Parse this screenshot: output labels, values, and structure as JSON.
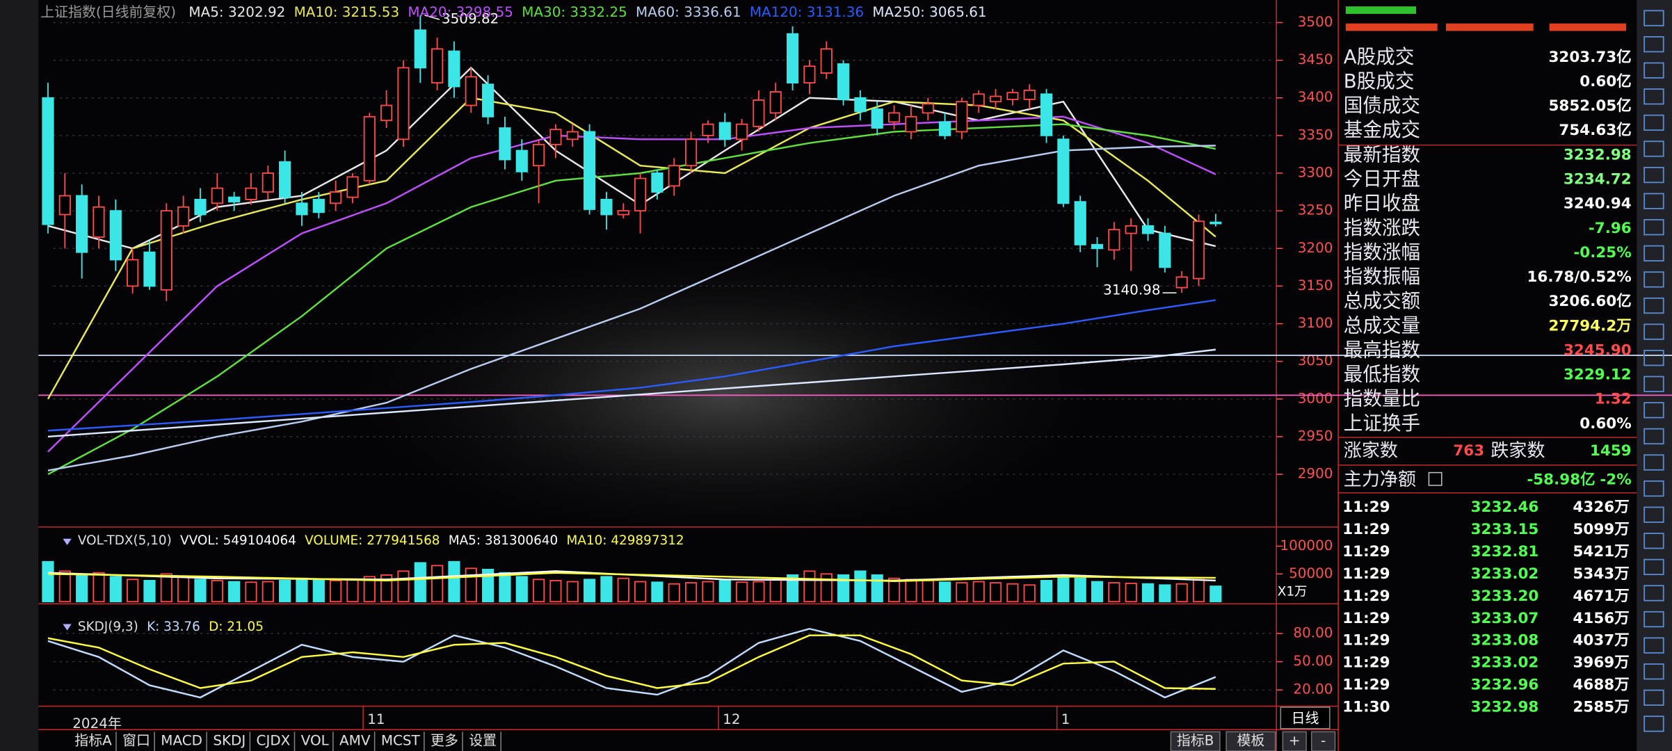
{
  "chart_data": [
    {
      "type": "candlestick",
      "title": "上证指数(日线前复权)",
      "year_label": "2024年",
      "up_color": "#ff4a4a",
      "down_color": "#3ce6e6",
      "axis_color": "#ff5050",
      "grid": true,
      "ylim": [
        2830,
        3530
      ],
      "yticks": [
        2900,
        2950,
        3000,
        3050,
        3100,
        3150,
        3200,
        3250,
        3300,
        3350,
        3400,
        3450,
        3500
      ],
      "categories": [
        null,
        null,
        null,
        null,
        null,
        null,
        null,
        null,
        null,
        null,
        null,
        null,
        null,
        null,
        null,
        null,
        null,
        null,
        null,
        "11",
        null,
        null,
        null,
        null,
        null,
        null,
        null,
        null,
        null,
        null,
        null,
        null,
        null,
        null,
        null,
        null,
        null,
        null,
        null,
        null,
        "12",
        null,
        null,
        null,
        null,
        null,
        null,
        null,
        null,
        null,
        null,
        null,
        null,
        null,
        null,
        null,
        null,
        null,
        null,
        null,
        "1",
        null,
        null,
        null,
        null,
        null,
        null,
        null,
        null,
        null
      ],
      "open": [
        3400,
        3245,
        3270,
        3215,
        3250,
        3150,
        3195,
        3145,
        3230,
        3265,
        3260,
        3268,
        3265,
        3275,
        3315,
        3260,
        3265,
        3260,
        3268,
        3290,
        3370,
        3345,
        3490,
        3420,
        3462,
        3390,
        3418,
        3360,
        3330,
        3310,
        3338,
        3345,
        3355,
        3265,
        3245,
        3250,
        3300,
        3283,
        3310,
        3350,
        3367,
        3345,
        3362,
        3380,
        3485,
        3420,
        3433,
        3445,
        3400,
        3385,
        3368,
        3355,
        3380,
        3368,
        3355,
        3390,
        3395,
        3398,
        3398,
        3405,
        3345,
        3262,
        3205,
        3198,
        3220,
        3230,
        3220,
        3148,
        3160,
        3234.72
      ],
      "close": [
        3232,
        3270,
        3195,
        3255,
        3185,
        3185,
        3150,
        3250,
        3255,
        3245,
        3280,
        3262,
        3280,
        3300,
        3268,
        3245,
        3248,
        3275,
        3295,
        3375,
        3390,
        3440,
        3440,
        3465,
        3415,
        3428,
        3375,
        3318,
        3302,
        3338,
        3358,
        3355,
        3252,
        3245,
        3250,
        3293,
        3275,
        3310,
        3345,
        3365,
        3345,
        3365,
        3397,
        3408,
        3420,
        3442,
        3465,
        3398,
        3382,
        3360,
        3380,
        3375,
        3392,
        3350,
        3395,
        3405,
        3402,
        3407,
        3410,
        3350,
        3260,
        3205,
        3200,
        3225,
        3230,
        3220,
        3175,
        3162,
        3236,
        3232.98
      ],
      "high": [
        3420,
        3300,
        3285,
        3270,
        3265,
        3200,
        3210,
        3260,
        3270,
        3280,
        3300,
        3275,
        3300,
        3310,
        3330,
        3275,
        3275,
        3290,
        3300,
        3380,
        3410,
        3450,
        3509.82,
        3480,
        3475,
        3440,
        3430,
        3375,
        3345,
        3345,
        3365,
        3365,
        3365,
        3275,
        3260,
        3300,
        3305,
        3320,
        3355,
        3370,
        3380,
        3372,
        3410,
        3420,
        3495,
        3450,
        3475,
        3450,
        3410,
        3395,
        3390,
        3390,
        3400,
        3380,
        3400,
        3410,
        3412,
        3412,
        3418,
        3412,
        3350,
        3270,
        3215,
        3235,
        3240,
        3240,
        3230,
        3170,
        3245,
        3245.9
      ],
      "low": [
        3220,
        3200,
        3160,
        3200,
        3170,
        3140,
        3145,
        3130,
        3220,
        3235,
        3250,
        3250,
        3258,
        3265,
        3260,
        3230,
        3240,
        3250,
        3260,
        3285,
        3360,
        3335,
        3420,
        3410,
        3400,
        3380,
        3365,
        3305,
        3290,
        3260,
        3320,
        3335,
        3245,
        3225,
        3240,
        3220,
        3265,
        3270,
        3300,
        3340,
        3335,
        3330,
        3355,
        3370,
        3410,
        3405,
        3425,
        3390,
        3370,
        3350,
        3358,
        3345,
        3370,
        3345,
        3345,
        3380,
        3385,
        3390,
        3385,
        3340,
        3255,
        3195,
        3175,
        3185,
        3170,
        3210,
        3168,
        3140.98,
        3150,
        3229.12
      ],
      "series": [
        {
          "label": "MA5: 3202.92",
          "color": "#e8e8e8",
          "x": [
            0,
            5,
            10,
            15,
            20,
            25,
            30,
            35,
            40,
            45,
            50,
            55,
            60,
            65,
            69
          ],
          "values": [
            3230,
            3200,
            3255,
            3270,
            3330,
            3440,
            3330,
            3258,
            3330,
            3400,
            3395,
            3370,
            3395,
            3225,
            3202.92
          ]
        },
        {
          "label": "MA10: 3215.53",
          "color": "#e8e858",
          "x": [
            0,
            5,
            10,
            15,
            20,
            25,
            30,
            35,
            40,
            45,
            50,
            55,
            60,
            65,
            69
          ],
          "values": [
            3000,
            3200,
            3235,
            3265,
            3290,
            3400,
            3380,
            3310,
            3300,
            3360,
            3395,
            3390,
            3370,
            3290,
            3215.53
          ]
        },
        {
          "label": "MA20: 3298.55",
          "color": "#c050ff",
          "x": [
            0,
            5,
            10,
            15,
            20,
            25,
            30,
            35,
            40,
            45,
            50,
            55,
            60,
            65,
            69
          ],
          "values": [
            2930,
            3040,
            3150,
            3220,
            3260,
            3320,
            3350,
            3345,
            3345,
            3360,
            3365,
            3370,
            3375,
            3340,
            3298.55
          ]
        },
        {
          "label": "MA30: 3332.25",
          "color": "#60e040",
          "x": [
            0,
            5,
            10,
            15,
            20,
            25,
            30,
            35,
            40,
            45,
            50,
            55,
            60,
            65,
            69
          ],
          "values": [
            2900,
            2960,
            3030,
            3110,
            3200,
            3255,
            3290,
            3300,
            3320,
            3340,
            3355,
            3360,
            3365,
            3350,
            3332.25
          ]
        },
        {
          "label": "MA60: 3336.61",
          "color": "#b8ccf0",
          "x": [
            0,
            5,
            10,
            15,
            20,
            25,
            30,
            35,
            40,
            45,
            50,
            55,
            60,
            65,
            69
          ],
          "values": [
            2905,
            2925,
            2950,
            2970,
            2995,
            3040,
            3080,
            3120,
            3170,
            3220,
            3270,
            3310,
            3330,
            3335,
            3336.61
          ]
        },
        {
          "label": "MA120: 3131.36",
          "color": "#2a5cff",
          "x": [
            0,
            5,
            10,
            15,
            20,
            25,
            30,
            35,
            40,
            45,
            50,
            55,
            60,
            65,
            69
          ],
          "values": [
            2958,
            2965,
            2972,
            2980,
            2988,
            2996,
            3005,
            3015,
            3030,
            3050,
            3070,
            3085,
            3100,
            3118,
            3131.36
          ]
        },
        {
          "label": "MA250: 3065.61",
          "color": "#dce8ff",
          "x": [
            0,
            5,
            10,
            15,
            20,
            25,
            30,
            35,
            40,
            45,
            50,
            55,
            60,
            65,
            69
          ],
          "values": [
            2950,
            2958,
            2966,
            2974,
            2982,
            2990,
            2998,
            3006,
            3014,
            3022,
            3030,
            3038,
            3046,
            3055,
            3065.61
          ]
        }
      ],
      "annotations": [
        {
          "label": "3509.82",
          "value": 3509.82,
          "x": 22
        },
        {
          "label": "3140.98",
          "value": 3140.98,
          "x": 67
        }
      ],
      "hlines": [
        {
          "value": 3058,
          "color": "#d0e0ff"
        },
        {
          "value": 3005,
          "color": "#ff60c8"
        }
      ]
    },
    {
      "type": "bar",
      "title": "VOL-TDX(5,10)",
      "unit_label": "X1万",
      "up_color": "#ff4a4a",
      "down_color": "#3ce6e6",
      "axis_color": "#ff5050",
      "grid": false,
      "ylim": [
        0,
        125000
      ],
      "yticks": [
        100000,
        50000
      ],
      "legend": [
        {
          "label": "VVOL: 549104064",
          "color": "#ffffff"
        },
        {
          "label": "VOLUME: 277941568",
          "color": "#ffff40"
        }
      ],
      "values": [
        72000,
        55000,
        50000,
        52000,
        45000,
        40000,
        38000,
        50000,
        45000,
        40000,
        38000,
        36000,
        35000,
        36000,
        38000,
        42000,
        40000,
        38000,
        40000,
        45000,
        48000,
        55000,
        70000,
        65000,
        72000,
        60000,
        58000,
        52000,
        45000,
        40000,
        38000,
        36000,
        40000,
        45000,
        42000,
        36000,
        35000,
        32000,
        34000,
        36000,
        38000,
        35000,
        36000,
        40000,
        48000,
        55000,
        50000,
        48000,
        55000,
        48000,
        42000,
        40000,
        38000,
        35000,
        34000,
        36000,
        34000,
        32000,
        30000,
        38000,
        45000,
        42000,
        36000,
        34000,
        33000,
        32000,
        30000,
        32000,
        40000,
        27794.2
      ],
      "series": [
        {
          "label": "MA5: 381300640",
          "color": "#ffffff",
          "x": [
            0,
            10,
            20,
            30,
            40,
            50,
            60,
            69
          ],
          "values": [
            52000,
            42000,
            40000,
            55000,
            40000,
            38000,
            48000,
            38130.064
          ]
        },
        {
          "label": "MA10: 429897312",
          "color": "#ffff40",
          "x": [
            0,
            10,
            20,
            30,
            40,
            50,
            60,
            69
          ],
          "values": [
            50000,
            45000,
            38000,
            52000,
            45000,
            37000,
            45000,
            42989.7312
          ]
        }
      ]
    },
    {
      "type": "line",
      "title": "SKDJ(9,3)",
      "axis_color": "#ff5050",
      "grid": true,
      "ylim": [
        5,
        107
      ],
      "yticks": [
        {
          "value": 80,
          "label": "80.00"
        },
        {
          "value": 50,
          "label": "50.00"
        },
        {
          "value": 20,
          "label": "20.00"
        }
      ],
      "series": [
        {
          "label": "K: 33.76",
          "color": "#c0dcff",
          "x": [
            0,
            3,
            6,
            9,
            12,
            15,
            18,
            21,
            24,
            27,
            30,
            33,
            36,
            39,
            42,
            45,
            48,
            51,
            54,
            57,
            60,
            63,
            66,
            69
          ],
          "values": [
            72,
            55,
            25,
            12,
            40,
            68,
            55,
            50,
            78,
            65,
            45,
            22,
            15,
            35,
            70,
            85,
            72,
            45,
            18,
            30,
            62,
            40,
            12,
            33.76
          ]
        },
        {
          "label": "D: 21.05",
          "color": "#ffff40",
          "x": [
            0,
            3,
            6,
            9,
            12,
            15,
            18,
            21,
            24,
            27,
            30,
            33,
            36,
            39,
            42,
            45,
            48,
            51,
            54,
            57,
            60,
            63,
            66,
            69
          ],
          "values": [
            75,
            65,
            42,
            22,
            30,
            55,
            60,
            55,
            68,
            70,
            55,
            35,
            22,
            28,
            55,
            78,
            78,
            58,
            30,
            25,
            48,
            50,
            22,
            21.05
          ]
        }
      ]
    }
  ],
  "period_label": "日线",
  "quote_panel": {
    "rows": [
      {
        "label": "A股成交",
        "value": "3203.73亿",
        "color": "#ffffff"
      },
      {
        "label": "B股成交",
        "value": "0.60亿",
        "color": "#ffffff"
      },
      {
        "label": "国债成交",
        "value": "5852.05亿",
        "color": "#ffffff"
      },
      {
        "label": "基金成交",
        "value": "754.63亿",
        "color": "#ffffff"
      },
      {
        "label": "最新指数",
        "value": "3232.98",
        "color": "#80ff80"
      },
      {
        "label": "今日开盘",
        "value": "3234.72",
        "color": "#80ff80"
      },
      {
        "label": "昨日收盘",
        "value": "3240.94",
        "color": "#ffffff"
      },
      {
        "label": "指数涨跌",
        "value": "-7.96",
        "color": "#50ff50"
      },
      {
        "label": "指数涨幅",
        "value": "-0.25%",
        "color": "#50ff50"
      },
      {
        "label": "指数振幅",
        "value": "16.78/0.52%",
        "color": "#ffffff"
      },
      {
        "label": "总成交额",
        "value": "3206.60亿",
        "color": "#ffffff"
      },
      {
        "label": "总成交量",
        "value": "27794.2万",
        "color": "#ffff60"
      },
      {
        "label": "最高指数",
        "value": "3245.90",
        "color": "#ff4a4a"
      },
      {
        "label": "最低指数",
        "value": "3229.12",
        "color": "#50ff50"
      },
      {
        "label": "指数量比",
        "value": "1.32",
        "color": "#ff4a4a"
      },
      {
        "label": "上证换手",
        "value": "0.60%",
        "color": "#ffffff"
      }
    ],
    "breadth": {
      "up_label": "涨家数",
      "up": "763",
      "down_label": "跌家数",
      "down": "1459"
    },
    "flow": {
      "label": "主力净额",
      "value": "-58.98亿",
      "pct": "-2%"
    },
    "ticks": [
      [
        "11:29",
        "3232.46",
        "4326万"
      ],
      [
        "11:29",
        "3233.15",
        "5099万"
      ],
      [
        "11:29",
        "3232.81",
        "5421万"
      ],
      [
        "11:29",
        "3233.02",
        "5343万"
      ],
      [
        "11:29",
        "3233.20",
        "4671万"
      ],
      [
        "11:29",
        "3233.07",
        "4156万"
      ],
      [
        "11:29",
        "3233.08",
        "4037万"
      ],
      [
        "11:29",
        "3233.02",
        "3969万"
      ],
      [
        "11:29",
        "3232.96",
        "4688万"
      ],
      [
        "11:30",
        "3232.98",
        "2585万"
      ]
    ]
  },
  "toolbar": {
    "left": [
      "指标A",
      "窗口",
      "MACD",
      "SKDJ",
      "CJDX",
      "VOL",
      "AMV",
      "MCST",
      "更多",
      "设置"
    ],
    "right": [
      "指标B",
      "模板",
      "+",
      "-"
    ]
  }
}
